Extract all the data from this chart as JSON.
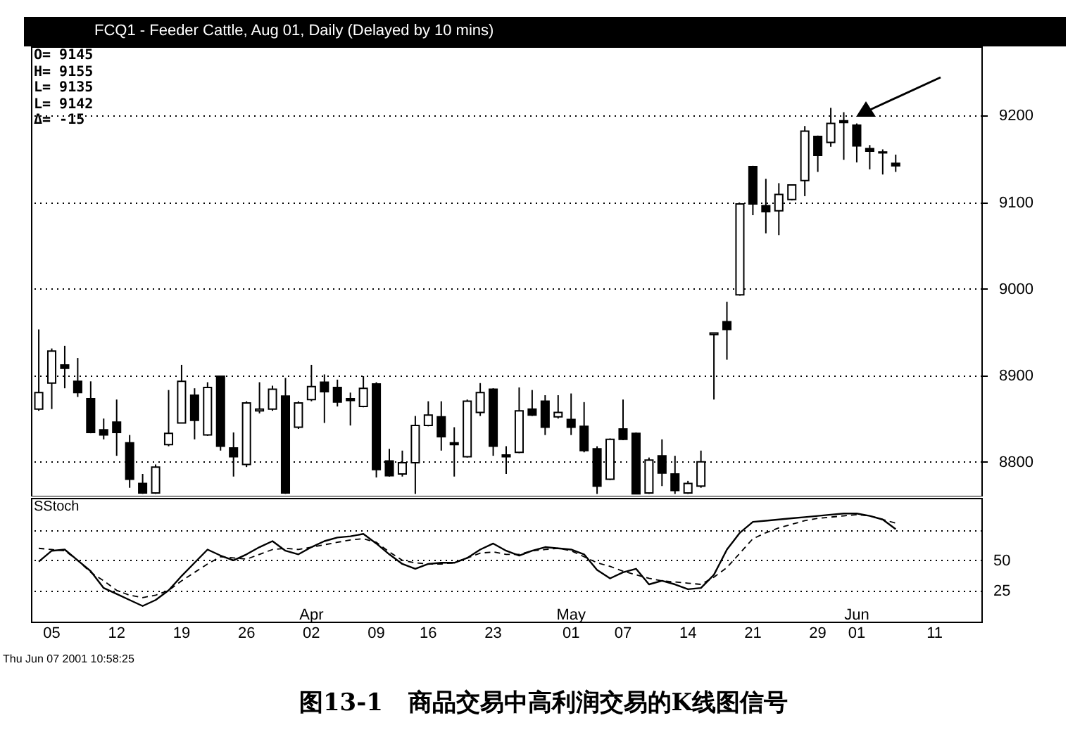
{
  "chart_data": [
    {
      "type": "candlestick",
      "title": "FCQ1 - Feeder Cattle, Aug 01, Daily (Delayed by 10 mins)",
      "color": "#000000",
      "annotations": [
        "O= 9145",
        "H= 9155",
        "L= 9135",
        "L= 9142",
        "Δ= -15"
      ],
      "categories": [
        null,
        null,
        null,
        null,
        null,
        null,
        null,
        null,
        null,
        null,
        null,
        null,
        null,
        null,
        null,
        null,
        null,
        null,
        null,
        null,
        null,
        null,
        null,
        null,
        null,
        null,
        null,
        null,
        null,
        null,
        null,
        null,
        null,
        null,
        null,
        null,
        null,
        null,
        null,
        null,
        null,
        null,
        null,
        null,
        null,
        null,
        null,
        null,
        null,
        null,
        null,
        null,
        null,
        null,
        null,
        null,
        null,
        null,
        null,
        null,
        null,
        null,
        null,
        null,
        null,
        null,
        null,
        null,
        null,
        null,
        null,
        null,
        null
      ],
      "ohlc": [
        [
          8861,
          8953,
          8859,
          8880
        ],
        [
          8891,
          8931,
          8861,
          8928
        ],
        [
          8912,
          8934,
          8885,
          8908
        ],
        [
          8893,
          8920,
          8875,
          8880
        ],
        [
          8873,
          8893,
          8833,
          8834
        ],
        [
          8837,
          8850,
          8826,
          8831
        ],
        [
          8846,
          8872,
          8807,
          8834
        ],
        [
          8822,
          8831,
          8770,
          8780
        ],
        [
          8775,
          8786,
          8763,
          8764
        ],
        [
          8764,
          8797,
          8763,
          8794
        ],
        [
          8820,
          8883,
          8818,
          8833
        ],
        [
          8845,
          8912,
          8845,
          8893
        ],
        [
          8877,
          8885,
          8826,
          8848
        ],
        [
          8831,
          8892,
          8830,
          8886
        ],
        [
          8899,
          8899,
          8813,
          8818
        ],
        [
          8816,
          8834,
          8783,
          8806
        ],
        [
          8797,
          8870,
          8794,
          8868
        ],
        [
          8859,
          8892,
          8856,
          8861
        ],
        [
          8861,
          8888,
          8859,
          8884
        ],
        [
          8876,
          8897,
          8763,
          8764
        ],
        [
          8840,
          8870,
          8838,
          8868
        ],
        [
          8872,
          8912,
          8870,
          8887
        ],
        [
          8892,
          8901,
          8845,
          8881
        ],
        [
          8886,
          8895,
          8864,
          8869
        ],
        [
          8873,
          8880,
          8842,
          8871
        ],
        [
          8864,
          8899,
          8863,
          8885
        ],
        [
          8890,
          8892,
          8782,
          8791
        ],
        [
          8801,
          8815,
          8783,
          8784
        ],
        [
          8786,
          8813,
          8783,
          8799
        ],
        [
          8799,
          8853,
          8763,
          8842
        ],
        [
          8842,
          8870,
          8841,
          8854
        ],
        [
          8852,
          8870,
          8813,
          8829
        ],
        [
          8822,
          8840,
          8783,
          8820
        ],
        [
          8806,
          8872,
          8805,
          8870
        ],
        [
          8857,
          8891,
          8853,
          8880
        ],
        [
          8884,
          8885,
          8807,
          8818
        ],
        [
          8808,
          8818,
          8786,
          8806
        ],
        [
          8811,
          8886,
          8810,
          8859
        ],
        [
          8861,
          8883,
          8853,
          8854
        ],
        [
          8870,
          8877,
          8831,
          8840
        ],
        [
          8852,
          8877,
          8850,
          8857
        ],
        [
          8849,
          8879,
          8831,
          8840
        ],
        [
          8841,
          8869,
          8811,
          8813
        ],
        [
          8815,
          8818,
          8763,
          8772
        ],
        [
          8780,
          8827,
          8779,
          8826
        ],
        [
          8838,
          8872,
          8825,
          8826
        ],
        [
          8833,
          8834,
          8763,
          8763
        ],
        [
          8764,
          8805,
          8763,
          8802
        ],
        [
          8807,
          8826,
          8772,
          8787
        ],
        [
          8786,
          8807,
          8763,
          8767
        ],
        [
          8764,
          8778,
          8763,
          8775
        ],
        [
          8772,
          8813,
          8770,
          8800
        ],
        [
          8947,
          8949,
          8872,
          8949
        ],
        [
          8962,
          8985,
          8918,
          8953
        ],
        [
          8993,
          9099,
          8992,
          9098
        ],
        [
          9141,
          9142,
          9085,
          9098
        ],
        [
          9096,
          9127,
          9064,
          9089
        ],
        [
          9090,
          9122,
          9062,
          9109
        ],
        [
          9103,
          9120,
          9102,
          9120
        ],
        [
          9125,
          9188,
          9107,
          9182
        ],
        [
          9176,
          9177,
          9135,
          9154
        ],
        [
          9169,
          9209,
          9164,
          9191
        ],
        [
          9194,
          9204,
          9149,
          9192
        ],
        [
          9189,
          9191,
          9146,
          9165
        ],
        [
          9162,
          9166,
          9138,
          9159
        ],
        [
          9158,
          9161,
          9132,
          9157
        ],
        [
          9145,
          9155,
          9135,
          9142
        ],
        null,
        null,
        null,
        null,
        null,
        null
      ],
      "ylim": [
        8760,
        9280
      ],
      "yticks": [
        8800,
        8900,
        9000,
        9100,
        9200
      ],
      "tick_labels": "y",
      "grid": "y"
    },
    {
      "type": "line",
      "title": "SStoch",
      "categories": [
        null,
        "05",
        null,
        null,
        null,
        null,
        "12",
        null,
        null,
        null,
        null,
        "19",
        null,
        null,
        null,
        null,
        "26",
        null,
        null,
        null,
        null,
        "Apr\n02",
        null,
        null,
        null,
        null,
        "09",
        null,
        null,
        null,
        "16",
        null,
        null,
        null,
        null,
        "23",
        null,
        null,
        null,
        null,
        null,
        "May\n01",
        null,
        null,
        null,
        "07",
        null,
        null,
        null,
        null,
        "14",
        null,
        null,
        null,
        null,
        "21",
        null,
        null,
        null,
        null,
        "29",
        null,
        null,
        "Jun\n01",
        null,
        null,
        null,
        null,
        null,
        "11",
        null,
        null,
        null
      ],
      "series": [
        {
          "color": "#000000",
          "values": [
            49,
            58,
            59,
            50,
            41,
            27,
            22,
            17,
            12,
            17,
            25,
            37,
            48,
            59,
            54,
            50,
            55,
            61,
            66,
            58,
            55,
            61,
            66,
            69,
            70,
            72,
            64,
            55,
            47,
            43,
            47,
            48,
            48,
            52,
            59,
            64,
            58,
            54,
            58,
            61,
            60,
            59,
            55,
            42,
            35,
            40,
            43,
            30,
            33,
            30,
            26,
            27,
            38,
            59,
            73,
            82,
            83,
            84,
            85,
            86,
            87,
            88,
            89,
            89,
            87,
            84,
            76,
            null,
            null,
            null,
            null,
            null,
            null
          ]
        },
        {
          "color": "#000000",
          "line_style": "dashed",
          "values": [
            60,
            59,
            58,
            50,
            40,
            33,
            25,
            21,
            19,
            21,
            25,
            33,
            40,
            47,
            53,
            52,
            51,
            55,
            59,
            60,
            59,
            61,
            63,
            65,
            67,
            68,
            65,
            57,
            50,
            48,
            47,
            47,
            48,
            52,
            56,
            57,
            55,
            55,
            58,
            59,
            60,
            58,
            53,
            48,
            45,
            41,
            38,
            35,
            33,
            32,
            31,
            30,
            36,
            44,
            56,
            68,
            73,
            77,
            80,
            83,
            85,
            86,
            87,
            88,
            87,
            84,
            81,
            null,
            null,
            null,
            null,
            null,
            null
          ]
        }
      ],
      "ylim": [
        -1,
        102
      ],
      "yticks": [
        25,
        50,
        {
          "value": 75,
          "label": null
        }
      ],
      "grid": "y",
      "annotations": [
        "Thu Jun 07 2001 10:58:25",
        "图13-1   商品交易中高利润交易的K线图信号"
      ]
    }
  ]
}
